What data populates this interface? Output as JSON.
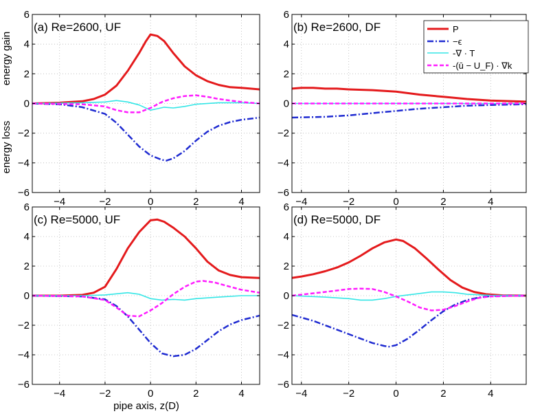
{
  "figure": {
    "xlabel": "pipe axis, z(D)",
    "ylabel_top": "energy gain",
    "ylabel_bottom": "energy loss",
    "legend": [
      {
        "key": "P",
        "label": "P",
        "color": "#e41a1c",
        "style": "solid"
      },
      {
        "key": "eps",
        "label": "−ϵ",
        "color": "#1f2bd1",
        "style": "dashdot"
      },
      {
        "key": "T",
        "label": "-∇ · T",
        "color": "#33e6e6",
        "style": "solid"
      },
      {
        "key": "adv",
        "label": "-(ū − U_F) · ∇k",
        "color": "#ff1aff",
        "style": "dashed"
      }
    ]
  },
  "chart_data": [
    {
      "type": "line",
      "id": "a",
      "title": "(a) Re=2600, UF",
      "xlim": [
        -5.2,
        4.8
      ],
      "ylim": [
        -6,
        6
      ],
      "xticks": [
        -4,
        -2,
        0,
        2,
        4
      ],
      "yticks": [
        -6,
        -4,
        -2,
        0,
        2,
        4,
        6
      ],
      "grid": true,
      "series": [
        {
          "name": "P",
          "x": [
            -5.2,
            -4,
            -3,
            -2.5,
            -2,
            -1.5,
            -1,
            -0.5,
            -0.2,
            0,
            0.3,
            0.6,
            1,
            1.5,
            2,
            2.5,
            3,
            3.5,
            4,
            4.8
          ],
          "y": [
            0,
            0.05,
            0.15,
            0.3,
            0.6,
            1.2,
            2.2,
            3.4,
            4.2,
            4.65,
            4.55,
            4.2,
            3.4,
            2.5,
            1.9,
            1.5,
            1.25,
            1.1,
            1.05,
            0.95
          ]
        },
        {
          "name": "eps",
          "x": [
            -5.2,
            -4,
            -3,
            -2,
            -1.5,
            -1,
            -0.5,
            0,
            0.5,
            0.7,
            1,
            1.5,
            2,
            2.5,
            3,
            3.5,
            4,
            4.8
          ],
          "y": [
            0,
            -0.05,
            -0.25,
            -0.7,
            -1.3,
            -2.1,
            -2.9,
            -3.5,
            -3.8,
            -3.85,
            -3.7,
            -3.2,
            -2.5,
            -1.9,
            -1.5,
            -1.25,
            -1.1,
            -0.95
          ]
        },
        {
          "name": "T",
          "x": [
            -5.2,
            -3,
            -2,
            -1.5,
            -1,
            -0.5,
            0,
            0.3,
            0.6,
            1,
            1.5,
            2,
            3,
            4,
            4.8
          ],
          "y": [
            0,
            0.05,
            0.1,
            0.2,
            0.1,
            -0.1,
            -0.45,
            -0.35,
            -0.25,
            -0.3,
            -0.2,
            -0.05,
            0.05,
            0.05,
            0
          ]
        },
        {
          "name": "adv",
          "x": [
            -5.2,
            -3,
            -2,
            -1.5,
            -1,
            -0.5,
            0,
            0.5,
            1,
            1.5,
            2,
            2.5,
            3,
            4,
            4.8
          ],
          "y": [
            0,
            -0.05,
            -0.2,
            -0.45,
            -0.6,
            -0.6,
            -0.3,
            0.1,
            0.35,
            0.5,
            0.55,
            0.45,
            0.3,
            0.1,
            0
          ]
        }
      ]
    },
    {
      "type": "line",
      "id": "b",
      "title": "(b) Re=2600, DF",
      "xlim": [
        -4.4,
        5.5
      ],
      "ylim": [
        -6,
        6
      ],
      "xticks": [
        -4,
        -2,
        0,
        2,
        4
      ],
      "yticks": [
        -6,
        -4,
        -2,
        0,
        2,
        4,
        6
      ],
      "grid": true,
      "series": [
        {
          "name": "P",
          "x": [
            -4.4,
            -4,
            -3.5,
            -3,
            -2.5,
            -2,
            -1,
            0,
            1,
            2,
            3,
            4,
            5.5
          ],
          "y": [
            1.0,
            1.05,
            1.05,
            1.0,
            1.0,
            0.95,
            0.9,
            0.8,
            0.6,
            0.45,
            0.3,
            0.2,
            0.12
          ]
        },
        {
          "name": "eps",
          "x": [
            -4.4,
            -3,
            -2,
            -1,
            0,
            1,
            2,
            3,
            4,
            5.5
          ],
          "y": [
            -0.95,
            -0.9,
            -0.8,
            -0.65,
            -0.5,
            -0.35,
            -0.25,
            -0.15,
            -0.1,
            -0.05
          ]
        },
        {
          "name": "T",
          "x": [
            -4.4,
            5.5
          ],
          "y": [
            0,
            0
          ]
        },
        {
          "name": "adv",
          "x": [
            -4.4,
            5.5
          ],
          "y": [
            0,
            0
          ]
        }
      ]
    },
    {
      "type": "line",
      "id": "c",
      "title": "(c) Re=5000, UF",
      "xlim": [
        -5.2,
        4.8
      ],
      "ylim": [
        -6,
        6
      ],
      "xticks": [
        -4,
        -2,
        0,
        2,
        4
      ],
      "yticks": [
        -6,
        -4,
        -2,
        0,
        2,
        4,
        6
      ],
      "grid": true,
      "series": [
        {
          "name": "P",
          "x": [
            -5.2,
            -4,
            -3,
            -2.5,
            -2,
            -1.5,
            -1,
            -0.5,
            0,
            0.3,
            0.6,
            1,
            1.5,
            2,
            2.5,
            3,
            3.5,
            4,
            4.8
          ],
          "y": [
            0,
            0,
            0.05,
            0.2,
            0.6,
            1.8,
            3.2,
            4.3,
            5.1,
            5.15,
            5.0,
            4.6,
            4.0,
            3.2,
            2.3,
            1.7,
            1.4,
            1.25,
            1.2
          ]
        },
        {
          "name": "eps",
          "x": [
            -5.2,
            -3,
            -2,
            -1.5,
            -1,
            -0.5,
            0,
            0.5,
            1,
            1.5,
            2,
            2.5,
            3,
            3.5,
            4,
            4.8
          ],
          "y": [
            0,
            -0.05,
            -0.25,
            -0.7,
            -1.4,
            -2.3,
            -3.2,
            -3.9,
            -4.1,
            -4.0,
            -3.6,
            -3.0,
            -2.4,
            -1.95,
            -1.65,
            -1.35
          ]
        },
        {
          "name": "T",
          "x": [
            -5.2,
            -3,
            -2,
            -1,
            -0.5,
            0,
            0.5,
            1,
            1.5,
            2,
            3,
            4,
            4.8
          ],
          "y": [
            0,
            0,
            0.05,
            0.2,
            0.1,
            -0.2,
            -0.3,
            -0.25,
            -0.3,
            -0.2,
            -0.1,
            0,
            0
          ]
        },
        {
          "name": "adv",
          "x": [
            -5.2,
            -3,
            -2,
            -1.5,
            -1,
            -0.5,
            0,
            0.5,
            1,
            1.5,
            2,
            2.3,
            2.8,
            3.5,
            4,
            4.8
          ],
          "y": [
            0,
            -0.05,
            -0.3,
            -0.8,
            -1.35,
            -1.4,
            -1.0,
            -0.5,
            0.1,
            0.6,
            0.95,
            1.0,
            0.9,
            0.6,
            0.4,
            0.2
          ]
        }
      ]
    },
    {
      "type": "line",
      "id": "d",
      "title": "(d) Re=5000, DF",
      "xlim": [
        -4.4,
        5.5
      ],
      "ylim": [
        -6,
        6
      ],
      "xticks": [
        -4,
        -2,
        0,
        2,
        4
      ],
      "yticks": [
        -6,
        -4,
        -2,
        0,
        2,
        4,
        6
      ],
      "grid": true,
      "series": [
        {
          "name": "P",
          "x": [
            -4.4,
            -4,
            -3.5,
            -3,
            -2.5,
            -2,
            -1.5,
            -1,
            -0.5,
            0,
            0.3,
            0.8,
            1.3,
            1.8,
            2.3,
            2.8,
            3.3,
            3.8,
            4.5,
            5.5
          ],
          "y": [
            1.2,
            1.3,
            1.45,
            1.65,
            1.9,
            2.25,
            2.7,
            3.2,
            3.6,
            3.8,
            3.7,
            3.2,
            2.5,
            1.75,
            1.05,
            0.55,
            0.25,
            0.1,
            0.02,
            0
          ]
        },
        {
          "name": "eps",
          "x": [
            -4.4,
            -3.5,
            -2.5,
            -1.5,
            -1,
            -0.5,
            -0.3,
            0,
            0.5,
            1,
            1.5,
            2,
            2.5,
            3,
            3.5,
            4,
            4.5,
            5.5
          ],
          "y": [
            -1.3,
            -1.7,
            -2.3,
            -2.9,
            -3.2,
            -3.4,
            -3.45,
            -3.35,
            -2.9,
            -2.3,
            -1.65,
            -1.05,
            -0.6,
            -0.3,
            -0.12,
            -0.03,
            0,
            0
          ]
        },
        {
          "name": "T",
          "x": [
            -4.4,
            -3,
            -2,
            -1.5,
            -1,
            -0.5,
            0,
            0.5,
            1,
            1.5,
            2,
            2.5,
            3,
            4,
            5.5
          ],
          "y": [
            0,
            -0.1,
            -0.2,
            -0.3,
            -0.3,
            -0.2,
            -0.05,
            0.05,
            0.15,
            0.25,
            0.25,
            0.2,
            0.1,
            0.02,
            0
          ]
        },
        {
          "name": "adv",
          "x": [
            -4.4,
            -3,
            -2.5,
            -2,
            -1.5,
            -1,
            -0.5,
            0,
            0.5,
            1,
            1.5,
            2,
            2.5,
            3,
            3.5,
            4,
            5.5
          ],
          "y": [
            0,
            0.25,
            0.35,
            0.45,
            0.48,
            0.45,
            0.25,
            -0.05,
            -0.4,
            -0.8,
            -1.0,
            -0.95,
            -0.7,
            -0.4,
            -0.15,
            -0.05,
            0
          ]
        }
      ]
    }
  ]
}
